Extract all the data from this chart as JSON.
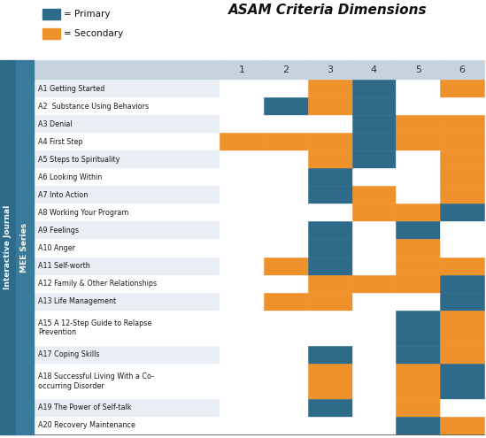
{
  "title": "ASAM Criteria Dimensions",
  "col_labels": [
    "1",
    "2",
    "3",
    "4",
    "5",
    "6"
  ],
  "row_labels": [
    "A1 Getting Started",
    "A2  Substance Using Behaviors",
    "A3 Denial",
    "A4 First Step",
    "A5 Steps to Spirituality",
    "A6 Looking Within",
    "A7 Into Action",
    "A8 Working Your Program",
    "A9 Feelings",
    "A10 Anger",
    "A11 Self-worth",
    "A12 Family & Other Relationships",
    "A13 Life Management",
    "A15 A 12-Step Guide to Relapse\nPrevention",
    "A17 Coping Skills",
    "A18 Successful Living With a Co-\noccurring Disorder",
    "A19 The Power of Self-talk",
    "A20 Recovery Maintenance"
  ],
  "grid": [
    [
      "white",
      "white",
      "orange",
      "blue",
      "white",
      "orange"
    ],
    [
      "white",
      "blue",
      "orange",
      "blue",
      "white",
      "white"
    ],
    [
      "white",
      "white",
      "white",
      "blue",
      "orange",
      "orange"
    ],
    [
      "orange",
      "orange",
      "orange",
      "blue",
      "orange",
      "orange"
    ],
    [
      "white",
      "white",
      "orange",
      "blue",
      "white",
      "orange"
    ],
    [
      "white",
      "white",
      "blue",
      "white",
      "white",
      "orange"
    ],
    [
      "white",
      "white",
      "blue",
      "orange",
      "white",
      "orange"
    ],
    [
      "white",
      "white",
      "white",
      "orange",
      "orange",
      "blue"
    ],
    [
      "white",
      "white",
      "blue",
      "white",
      "blue",
      "white"
    ],
    [
      "white",
      "white",
      "blue",
      "white",
      "orange",
      "white"
    ],
    [
      "white",
      "orange",
      "blue",
      "white",
      "orange",
      "orange"
    ],
    [
      "white",
      "white",
      "orange",
      "orange",
      "orange",
      "blue"
    ],
    [
      "white",
      "orange",
      "orange",
      "white",
      "white",
      "blue"
    ],
    [
      "white",
      "white",
      "white",
      "white",
      "blue",
      "orange"
    ],
    [
      "white",
      "white",
      "blue",
      "white",
      "blue",
      "orange"
    ],
    [
      "white",
      "white",
      "orange",
      "white",
      "orange",
      "blue"
    ],
    [
      "white",
      "white",
      "blue",
      "white",
      "orange",
      "white"
    ],
    [
      "white",
      "white",
      "white",
      "white",
      "blue",
      "orange"
    ]
  ],
  "primary_color": "#2E6B8A",
  "secondary_color": "#F0922B",
  "white_color": "#FFFFFF",
  "row_bg_even": "#E8EEF3",
  "row_bg_odd": "#FFFFFF",
  "sidebar_color": "#2E6B8A",
  "sidebar_text": "Interactive Journal",
  "inner_sidebar_text": "MEE Series",
  "legend_primary": "= Primary",
  "legend_secondary": "= Secondary",
  "grid_line_color": "#555555",
  "col_header_color": "#C5D3DF",
  "title_fontsize": 11,
  "label_fontsize": 5.8,
  "header_fontsize": 8
}
